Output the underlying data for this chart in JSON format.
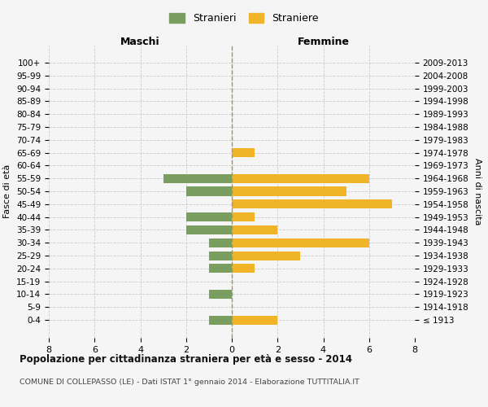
{
  "age_groups": [
    "100+",
    "95-99",
    "90-94",
    "85-89",
    "80-84",
    "75-79",
    "70-74",
    "65-69",
    "60-64",
    "55-59",
    "50-54",
    "45-49",
    "40-44",
    "35-39",
    "30-34",
    "25-29",
    "20-24",
    "15-19",
    "10-14",
    "5-9",
    "0-4"
  ],
  "birth_years": [
    "≤ 1913",
    "1914-1918",
    "1919-1923",
    "1924-1928",
    "1929-1933",
    "1934-1938",
    "1939-1943",
    "1944-1948",
    "1949-1953",
    "1954-1958",
    "1959-1963",
    "1964-1968",
    "1969-1973",
    "1974-1978",
    "1979-1983",
    "1984-1988",
    "1989-1993",
    "1994-1998",
    "1999-2003",
    "2004-2008",
    "2009-2013"
  ],
  "maschi": [
    0,
    0,
    0,
    0,
    0,
    0,
    0,
    0,
    0,
    3,
    2,
    0,
    2,
    2,
    1,
    1,
    1,
    0,
    1,
    0,
    1
  ],
  "femmine": [
    0,
    0,
    0,
    0,
    0,
    0,
    0,
    1,
    0,
    6,
    5,
    7,
    1,
    2,
    6,
    3,
    1,
    0,
    0,
    0,
    2
  ],
  "maschi_color": "#7a9e5f",
  "femmine_color": "#f0b429",
  "background_color": "#f5f5f5",
  "grid_color": "#cccccc",
  "title": "Popolazione per cittadinanza straniera per età e sesso - 2014",
  "subtitle": "COMUNE DI COLLEPASSO (LE) - Dati ISTAT 1° gennaio 2014 - Elaborazione TUTTITALIA.IT",
  "xlabel_left": "Maschi",
  "xlabel_right": "Femmine",
  "ylabel": "Fasce di età",
  "ylabel_right": "Anni di nascita",
  "legend_maschi": "Stranieri",
  "legend_femmine": "Straniere",
  "xlim": 8,
  "dpi": 100,
  "figsize": [
    6.0,
    5.0
  ]
}
